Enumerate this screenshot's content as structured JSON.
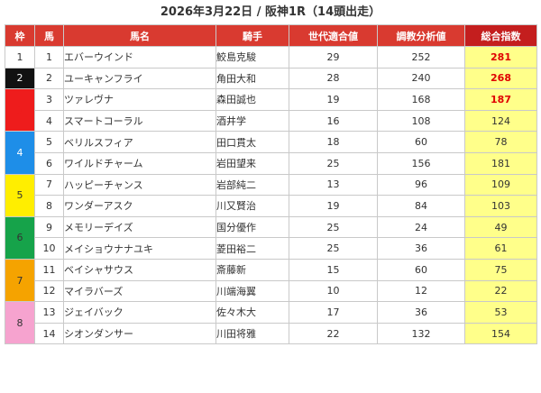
{
  "title": "2026年3月22日 / 阪神1R（14頭出走）",
  "headers": {
    "waku": "枠",
    "uma": "馬",
    "name": "馬名",
    "jockey": "騎手",
    "gen": "世代適合値",
    "train": "調教分析値",
    "total": "総合指数"
  },
  "colors": {
    "header": "#d93a30",
    "total_bg": "#ffff8a",
    "top_value": "#e00000"
  },
  "waku": [
    {
      "label": "1",
      "color": "#ffffff"
    },
    {
      "label": "2",
      "color": "#111111"
    },
    {
      "label": "3",
      "color": "#ee1c1c"
    },
    {
      "label": "4",
      "color": "#1e8ee8"
    },
    {
      "label": "5",
      "color": "#ffee00"
    },
    {
      "label": "6",
      "color": "#16a34a"
    },
    {
      "label": "7",
      "color": "#f5a300"
    },
    {
      "label": "8",
      "color": "#f6a3cf"
    }
  ],
  "rows": [
    {
      "uma": "1",
      "name": "エバーウインド",
      "jockey": "鮫島克駿",
      "gen": "29",
      "train": "252",
      "total": "281"
    },
    {
      "uma": "2",
      "name": "ユーキャンフライ",
      "jockey": "角田大和",
      "gen": "28",
      "train": "240",
      "total": "268"
    },
    {
      "uma": "3",
      "name": "ツァレヴナ",
      "jockey": "森田誠也",
      "gen": "19",
      "train": "168",
      "total": "187"
    },
    {
      "uma": "4",
      "name": "スマートコーラル",
      "jockey": "酒井学",
      "gen": "16",
      "train": "108",
      "total": "124"
    },
    {
      "uma": "5",
      "name": "ベリルスフィア",
      "jockey": "田口貫太",
      "gen": "18",
      "train": "60",
      "total": "78"
    },
    {
      "uma": "6",
      "name": "ワイルドチャーム",
      "jockey": "岩田望来",
      "gen": "25",
      "train": "156",
      "total": "181"
    },
    {
      "uma": "7",
      "name": "ハッピーチャンス",
      "jockey": "岩部純二",
      "gen": "13",
      "train": "96",
      "total": "109"
    },
    {
      "uma": "8",
      "name": "ワンダーアスク",
      "jockey": "川又賢治",
      "gen": "19",
      "train": "84",
      "total": "103"
    },
    {
      "uma": "9",
      "name": "メモリーデイズ",
      "jockey": "国分優作",
      "gen": "25",
      "train": "24",
      "total": "49"
    },
    {
      "uma": "10",
      "name": "メイショウナナユキ",
      "jockey": "菱田裕二",
      "gen": "25",
      "train": "36",
      "total": "61"
    },
    {
      "uma": "11",
      "name": "ベイシャサウス",
      "jockey": "斎藤新",
      "gen": "15",
      "train": "60",
      "total": "75"
    },
    {
      "uma": "12",
      "name": "マイラバーズ",
      "jockey": "川端海翼",
      "gen": "10",
      "train": "12",
      "total": "22"
    },
    {
      "uma": "13",
      "name": "ジェイバック",
      "jockey": "佐々木大",
      "gen": "17",
      "train": "36",
      "total": "53"
    },
    {
      "uma": "14",
      "name": "シオンダンサー",
      "jockey": "川田将雅",
      "gen": "22",
      "train": "132",
      "total": "154"
    }
  ]
}
